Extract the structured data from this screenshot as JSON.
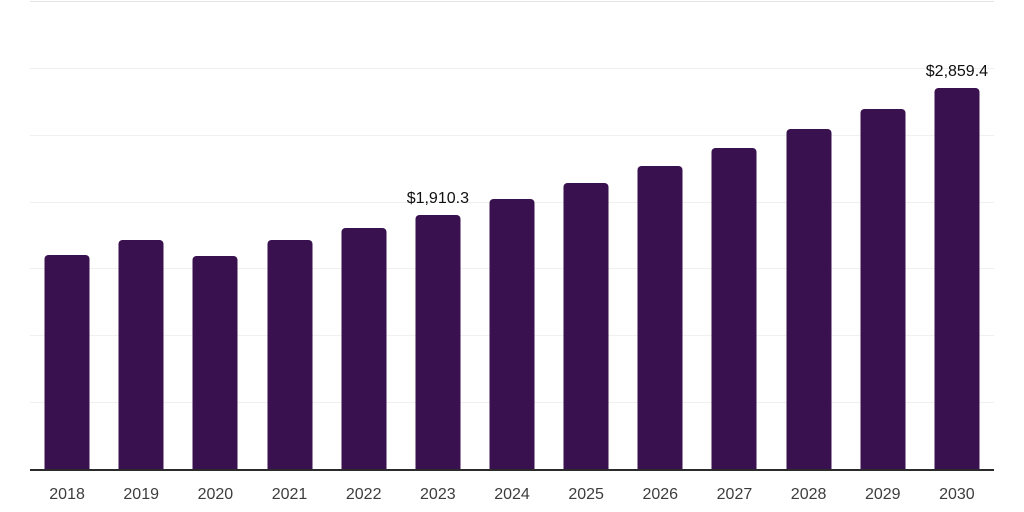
{
  "page": {
    "background_color": "#ffffff"
  },
  "chart_data": {
    "type": "bar",
    "title": "",
    "xlabel": "",
    "ylabel": "",
    "categories": [
      "2018",
      "2019",
      "2020",
      "2021",
      "2022",
      "2023",
      "2024",
      "2025",
      "2026",
      "2027",
      "2028",
      "2029",
      "2030"
    ],
    "values": [
      1610.0,
      1722.0,
      1604.0,
      1722.0,
      1811.0,
      1910.3,
      2023.6,
      2143.6,
      2270.8,
      2405.4,
      2548.0,
      2699.1,
      2859.4
    ],
    "data_labels": {
      "2023": "$1,910.3",
      "2030": "$2,859.4"
    },
    "ylim": [
      0,
      3500
    ],
    "gridline_interval": 500,
    "grid": "horizontal",
    "y_axis_labels_visible": false,
    "legend_position": "none",
    "bar_color": "#38114e",
    "gridline_color": "#f0f0f0",
    "top_gridline_color": "#e4e4e4",
    "axis_line_color": "#2b2b2b",
    "value_label_color": "#0f0f0f",
    "tick_label_color": "#3d3d3d"
  }
}
